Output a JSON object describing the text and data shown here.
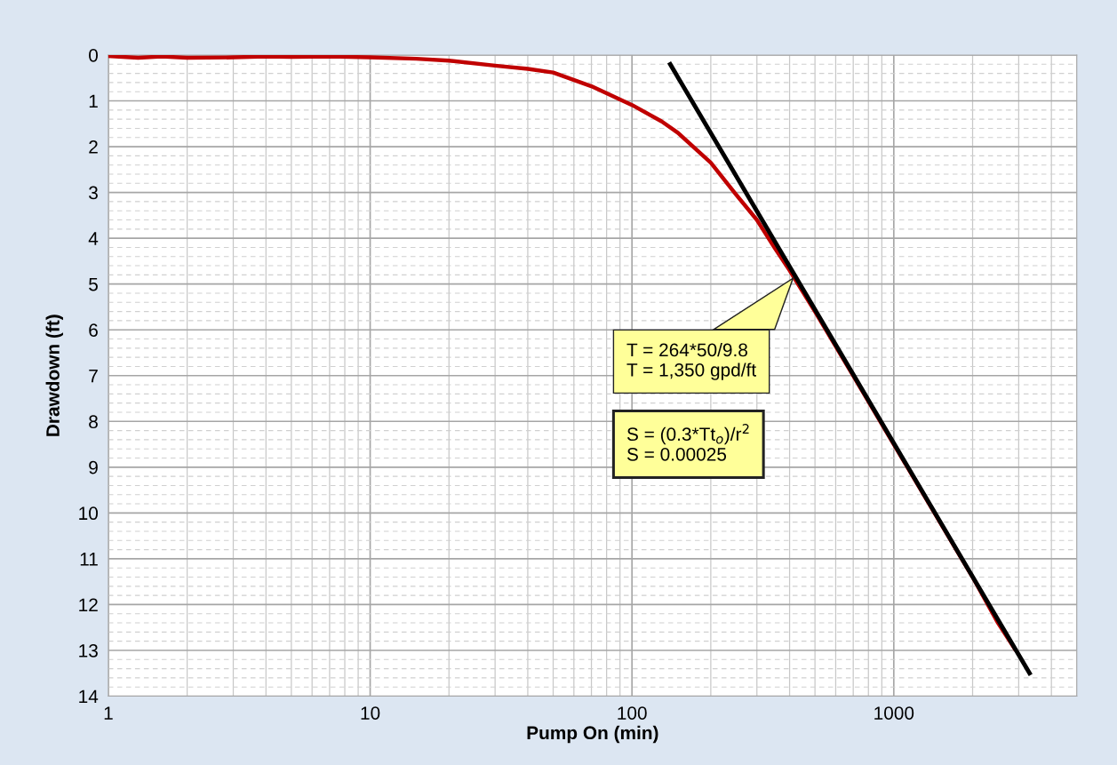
{
  "chart_data": {
    "type": "line",
    "xlabel": "Pump On (min)",
    "ylabel": "Drawdown (ft)",
    "log": "x",
    "xlim": [
      1,
      5000
    ],
    "xticks": [
      1,
      10,
      100,
      1000
    ],
    "ylim": [
      14,
      0
    ],
    "yticks": [
      0,
      1,
      2,
      3,
      4,
      5,
      6,
      7,
      8,
      9,
      10,
      11,
      12,
      13,
      14
    ],
    "grid": true,
    "marker": "none",
    "line_style": "solid",
    "series": [
      {
        "color": "#c00000",
        "x": [
          1,
          1.3,
          1.6,
          2,
          3,
          4,
          5,
          7,
          10,
          15,
          20,
          30,
          40,
          50,
          70,
          100,
          130,
          150,
          200,
          250,
          300,
          350,
          400,
          500,
          700,
          1000,
          1500,
          2000,
          2500,
          2900
        ],
        "values": [
          0.02,
          0.06,
          0.03,
          0.06,
          0.05,
          0.03,
          0.04,
          0.03,
          0.05,
          0.08,
          0.12,
          0.23,
          0.3,
          0.38,
          0.68,
          1.09,
          1.45,
          1.7,
          2.35,
          3.05,
          3.6,
          4.2,
          4.7,
          5.6,
          7.0,
          8.5,
          10.2,
          11.4,
          12.4,
          12.97
        ]
      },
      {
        "color": "#000000",
        "x": [
          140,
          3300
        ],
        "values": [
          0.2,
          13.5
        ]
      }
    ],
    "annotations": [
      "T = 264*50/9.8\nT = 1,350 gpd/ft",
      "S = (0.3*Tt$_{o}$)/r$^{2}$\nS = 0.00025"
    ]
  }
}
